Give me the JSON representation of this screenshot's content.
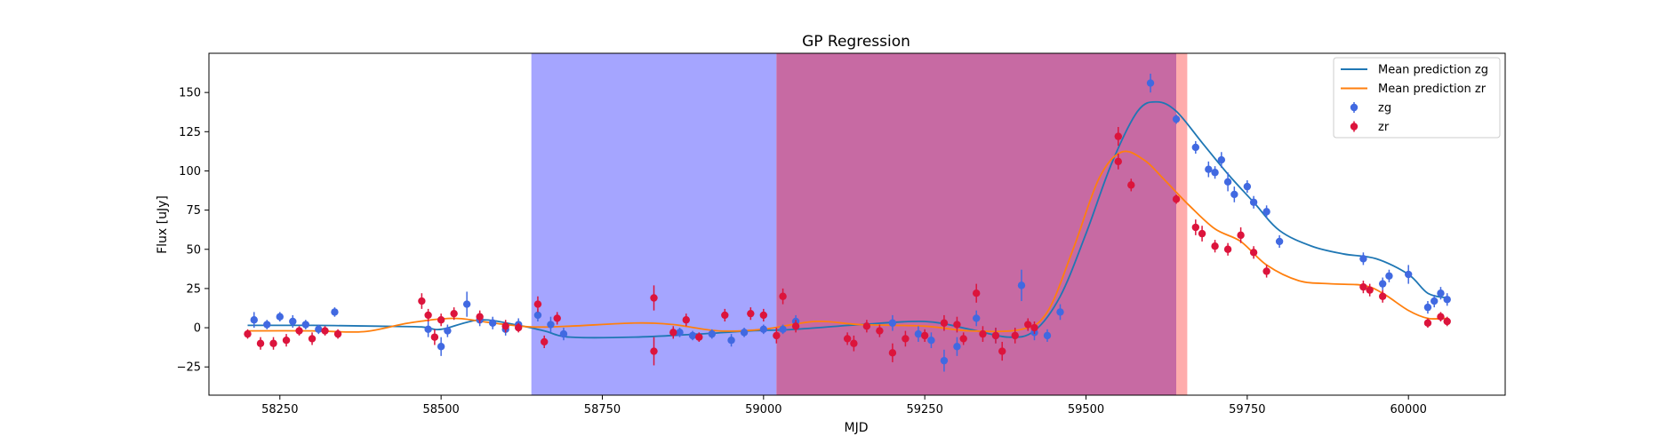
{
  "chart_data": {
    "type": "scatter",
    "title": "GP Regression",
    "xlabel": "MJD",
    "ylabel": "Flux [uJy]",
    "xlim": [
      58140,
      60150
    ],
    "ylim": [
      -43,
      175
    ],
    "xticks": [
      58250,
      58500,
      58750,
      59000,
      59250,
      59500,
      59750,
      60000
    ],
    "yticks": [
      -25,
      0,
      25,
      50,
      75,
      100,
      125,
      150
    ],
    "legend_position": "top-right",
    "spans": [
      {
        "x0": 58640,
        "x1": 59020,
        "color": "#7f7fff",
        "opacity": 0.7
      },
      {
        "x0": 59020,
        "x1": 59640,
        "color": "#c76aa3",
        "opacity": 1.0
      },
      {
        "x0": 59640,
        "x1": 59657,
        "color": "#ff7f7f",
        "opacity": 0.65
      }
    ],
    "series": [
      {
        "name": "Mean prediction zg",
        "kind": "line",
        "color": "#1f77b4",
        "points": [
          [
            58200,
            1.5
          ],
          [
            58300,
            1.5
          ],
          [
            58400,
            1
          ],
          [
            58470,
            0.5
          ],
          [
            58500,
            -1
          ],
          [
            58560,
            5
          ],
          [
            58620,
            1.5
          ],
          [
            58660,
            -2
          ],
          [
            58700,
            -6
          ],
          [
            58800,
            -6
          ],
          [
            58900,
            -4
          ],
          [
            58980,
            -2
          ],
          [
            59050,
            -1
          ],
          [
            59150,
            2
          ],
          [
            59250,
            4
          ],
          [
            59320,
            -1
          ],
          [
            59380,
            -6
          ],
          [
            59420,
            -2
          ],
          [
            59460,
            20
          ],
          [
            59500,
            60
          ],
          [
            59540,
            105
          ],
          [
            59580,
            138
          ],
          [
            59610,
            144
          ],
          [
            59640,
            138
          ],
          [
            59680,
            118
          ],
          [
            59720,
            98
          ],
          [
            59760,
            80
          ],
          [
            59800,
            62
          ],
          [
            59850,
            52
          ],
          [
            59900,
            47
          ],
          [
            59950,
            44
          ],
          [
            60000,
            34
          ],
          [
            60030,
            22
          ],
          [
            60060,
            19
          ]
        ]
      },
      {
        "name": "Mean prediction zr",
        "kind": "line",
        "color": "#ff7f0e",
        "points": [
          [
            58200,
            -2
          ],
          [
            58300,
            -2
          ],
          [
            58380,
            -2.5
          ],
          [
            58450,
            3
          ],
          [
            58520,
            6
          ],
          [
            58580,
            3
          ],
          [
            58640,
            0.5
          ],
          [
            58700,
            1
          ],
          [
            58800,
            3
          ],
          [
            58860,
            2
          ],
          [
            58930,
            -2
          ],
          [
            59000,
            -1
          ],
          [
            59080,
            4
          ],
          [
            59150,
            2
          ],
          [
            59250,
            1
          ],
          [
            59320,
            -2
          ],
          [
            59400,
            -1
          ],
          [
            59440,
            10
          ],
          [
            59480,
            50
          ],
          [
            59520,
            95
          ],
          [
            59555,
            112
          ],
          [
            59590,
            107
          ],
          [
            59620,
            95
          ],
          [
            59660,
            78
          ],
          [
            59700,
            63
          ],
          [
            59740,
            55
          ],
          [
            59780,
            40
          ],
          [
            59830,
            30
          ],
          [
            59880,
            28
          ],
          [
            59930,
            27
          ],
          [
            59960,
            22
          ],
          [
            60000,
            11
          ],
          [
            60030,
            6
          ],
          [
            60060,
            6
          ]
        ]
      },
      {
        "name": "zg",
        "kind": "errorbar",
        "color": "#4169e1",
        "points": [
          [
            58210,
            5,
            5
          ],
          [
            58230,
            2,
            3
          ],
          [
            58250,
            7,
            3
          ],
          [
            58270,
            4,
            4
          ],
          [
            58290,
            2,
            3
          ],
          [
            58310,
            -1,
            3
          ],
          [
            58335,
            10,
            3
          ],
          [
            58480,
            -1,
            5
          ],
          [
            58500,
            -12,
            6
          ],
          [
            58510,
            -2,
            4
          ],
          [
            58540,
            15,
            8
          ],
          [
            58560,
            5,
            4
          ],
          [
            58580,
            3,
            4
          ],
          [
            58600,
            -1,
            4
          ],
          [
            58620,
            2,
            4
          ],
          [
            58650,
            8,
            4
          ],
          [
            58670,
            2,
            5
          ],
          [
            58690,
            -4,
            4
          ],
          [
            58870,
            -3,
            3
          ],
          [
            58890,
            -5,
            3
          ],
          [
            58920,
            -4,
            3
          ],
          [
            58950,
            -8,
            4
          ],
          [
            58970,
            -3,
            3
          ],
          [
            59000,
            -1,
            3
          ],
          [
            59030,
            -1,
            3
          ],
          [
            59050,
            4,
            4
          ],
          [
            59200,
            3,
            5
          ],
          [
            59240,
            -4,
            5
          ],
          [
            59260,
            -8,
            5
          ],
          [
            59280,
            -21,
            7
          ],
          [
            59300,
            -12,
            6
          ],
          [
            59330,
            6,
            5
          ],
          [
            59360,
            -5,
            5
          ],
          [
            59400,
            27,
            10
          ],
          [
            59420,
            -3,
            5
          ],
          [
            59440,
            -5,
            4
          ],
          [
            59460,
            10,
            5
          ],
          [
            59600,
            156,
            6
          ],
          [
            59640,
            133,
            3
          ],
          [
            59670,
            115,
            4
          ],
          [
            59690,
            101,
            5
          ],
          [
            59700,
            99,
            4
          ],
          [
            59710,
            107,
            5
          ],
          [
            59720,
            93,
            6
          ],
          [
            59730,
            85,
            5
          ],
          [
            59750,
            90,
            4
          ],
          [
            59760,
            80,
            4
          ],
          [
            59780,
            74,
            4
          ],
          [
            59800,
            55,
            4
          ],
          [
            59930,
            44,
            4
          ],
          [
            59960,
            28,
            4
          ],
          [
            59970,
            33,
            4
          ],
          [
            60000,
            34,
            6
          ],
          [
            60030,
            13,
            4
          ],
          [
            60040,
            17,
            4
          ],
          [
            60050,
            22,
            4
          ],
          [
            60060,
            18,
            4
          ]
        ]
      },
      {
        "name": "zr",
        "kind": "errorbar",
        "color": "#dc143c",
        "points": [
          [
            58200,
            -4,
            3
          ],
          [
            58220,
            -10,
            4
          ],
          [
            58240,
            -10,
            4
          ],
          [
            58260,
            -8,
            4
          ],
          [
            58280,
            -2,
            3
          ],
          [
            58300,
            -7,
            4
          ],
          [
            58320,
            -2,
            3
          ],
          [
            58340,
            -4,
            3
          ],
          [
            58470,
            17,
            5
          ],
          [
            58480,
            8,
            4
          ],
          [
            58490,
            -6,
            5
          ],
          [
            58500,
            5,
            4
          ],
          [
            58520,
            9,
            4
          ],
          [
            58560,
            7,
            4
          ],
          [
            58600,
            1,
            4
          ],
          [
            58620,
            0,
            3
          ],
          [
            58650,
            15,
            5
          ],
          [
            58660,
            -9,
            4
          ],
          [
            58680,
            6,
            4
          ],
          [
            58830,
            -15,
            9
          ],
          [
            58830,
            19,
            8
          ],
          [
            58860,
            -3,
            4
          ],
          [
            58880,
            5,
            4
          ],
          [
            58900,
            -6,
            3
          ],
          [
            58940,
            8,
            4
          ],
          [
            58980,
            9,
            4
          ],
          [
            59000,
            8,
            4
          ],
          [
            59020,
            -5,
            5
          ],
          [
            59030,
            20,
            5
          ],
          [
            59050,
            1,
            4
          ],
          [
            59130,
            -7,
            4
          ],
          [
            59140,
            -10,
            5
          ],
          [
            59160,
            1,
            4
          ],
          [
            59180,
            -2,
            4
          ],
          [
            59200,
            -16,
            6
          ],
          [
            59220,
            -7,
            5
          ],
          [
            59250,
            -5,
            4
          ],
          [
            59280,
            3,
            5
          ],
          [
            59300,
            2,
            5
          ],
          [
            59310,
            -7,
            4
          ],
          [
            59330,
            22,
            6
          ],
          [
            59340,
            -4,
            5
          ],
          [
            59360,
            -5,
            5
          ],
          [
            59370,
            -15,
            6
          ],
          [
            59390,
            -5,
            5
          ],
          [
            59410,
            2,
            4
          ],
          [
            59420,
            0,
            4
          ],
          [
            59550,
            122,
            6
          ],
          [
            59550,
            106,
            5
          ],
          [
            59570,
            91,
            4
          ],
          [
            59640,
            82,
            3
          ],
          [
            59670,
            64,
            5
          ],
          [
            59680,
            60,
            5
          ],
          [
            59700,
            52,
            4
          ],
          [
            59720,
            50,
            4
          ],
          [
            59740,
            59,
            5
          ],
          [
            59760,
            48,
            4
          ],
          [
            59780,
            36,
            4
          ],
          [
            59930,
            26,
            4
          ],
          [
            59940,
            24,
            4
          ],
          [
            59960,
            20,
            4
          ],
          [
            60030,
            3,
            3
          ],
          [
            60050,
            7,
            3
          ],
          [
            60060,
            4,
            3
          ]
        ]
      }
    ]
  }
}
